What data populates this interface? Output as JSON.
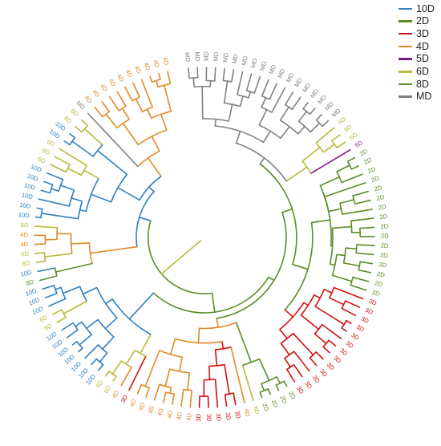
{
  "legend": {
    "items": [
      {
        "label": "10D",
        "color": "#2f7fc1"
      },
      {
        "label": "2D",
        "color": "#5b8c26"
      },
      {
        "label": "3D",
        "color": "#d01010"
      },
      {
        "label": "4D",
        "color": "#e08a2a"
      },
      {
        "label": "5D",
        "color": "#7a1d86"
      },
      {
        "label": "6D",
        "color": "#b9b93a"
      },
      {
        "label": "8D",
        "color": "#5b8c26"
      },
      {
        "label": "MD",
        "color": "#808080"
      }
    ]
  },
  "tree": {
    "clades": [
      {
        "label": "MD",
        "count": 18,
        "color": "#808080"
      },
      {
        "label": "6D",
        "count": 3,
        "color": "#b9b93a"
      },
      {
        "label": "5D",
        "count": 1,
        "color": "#7a1d86"
      },
      {
        "label": "2D",
        "count": 16,
        "color": "#5b8c26"
      },
      {
        "label": "3D",
        "count": 13,
        "color": "#d01010"
      },
      {
        "label": "2D",
        "count": 4,
        "color": "#5b8c26"
      },
      {
        "label": "6D",
        "count": 1,
        "color": "#b9b93a"
      },
      {
        "label": "4D",
        "count": 1,
        "color": "#e08a2a"
      },
      {
        "label": "3D",
        "count": 5,
        "color": "#d01010"
      },
      {
        "label": "4D",
        "count": 7,
        "color": "#e08a2a"
      },
      {
        "label": "3D",
        "count": 1,
        "color": "#d01010"
      },
      {
        "label": "4D",
        "count": 1,
        "color": "#e08a2a"
      },
      {
        "label": "6D",
        "count": 2,
        "color": "#b9b93a"
      },
      {
        "label": "10D",
        "count": 7,
        "color": "#2f7fc1"
      },
      {
        "label": "6D",
        "count": 2,
        "color": "#b9b93a"
      },
      {
        "label": "10D",
        "count": 3,
        "color": "#2f7fc1"
      },
      {
        "label": "8D",
        "count": 1,
        "color": "#5b8c26"
      },
      {
        "label": "10D",
        "count": 1,
        "color": "#2f7fc1"
      },
      {
        "label": "6D",
        "count": 2,
        "color": "#b9b93a"
      },
      {
        "label": "4D",
        "count": 2,
        "color": "#e08a2a"
      },
      {
        "label": "6D",
        "count": 1,
        "color": "#b9b93a"
      },
      {
        "label": "10D",
        "count": 6,
        "color": "#2f7fc1"
      },
      {
        "label": "6D",
        "count": 3,
        "color": "#b9b93a"
      },
      {
        "label": "10D",
        "count": 2,
        "color": "#2f7fc1"
      },
      {
        "label": "6D",
        "count": 2,
        "color": "#b9b93a"
      },
      {
        "label": "MD",
        "count": 1,
        "color": "#808080"
      },
      {
        "label": "4D",
        "count": 10,
        "color": "#e08a2a"
      }
    ]
  }
}
